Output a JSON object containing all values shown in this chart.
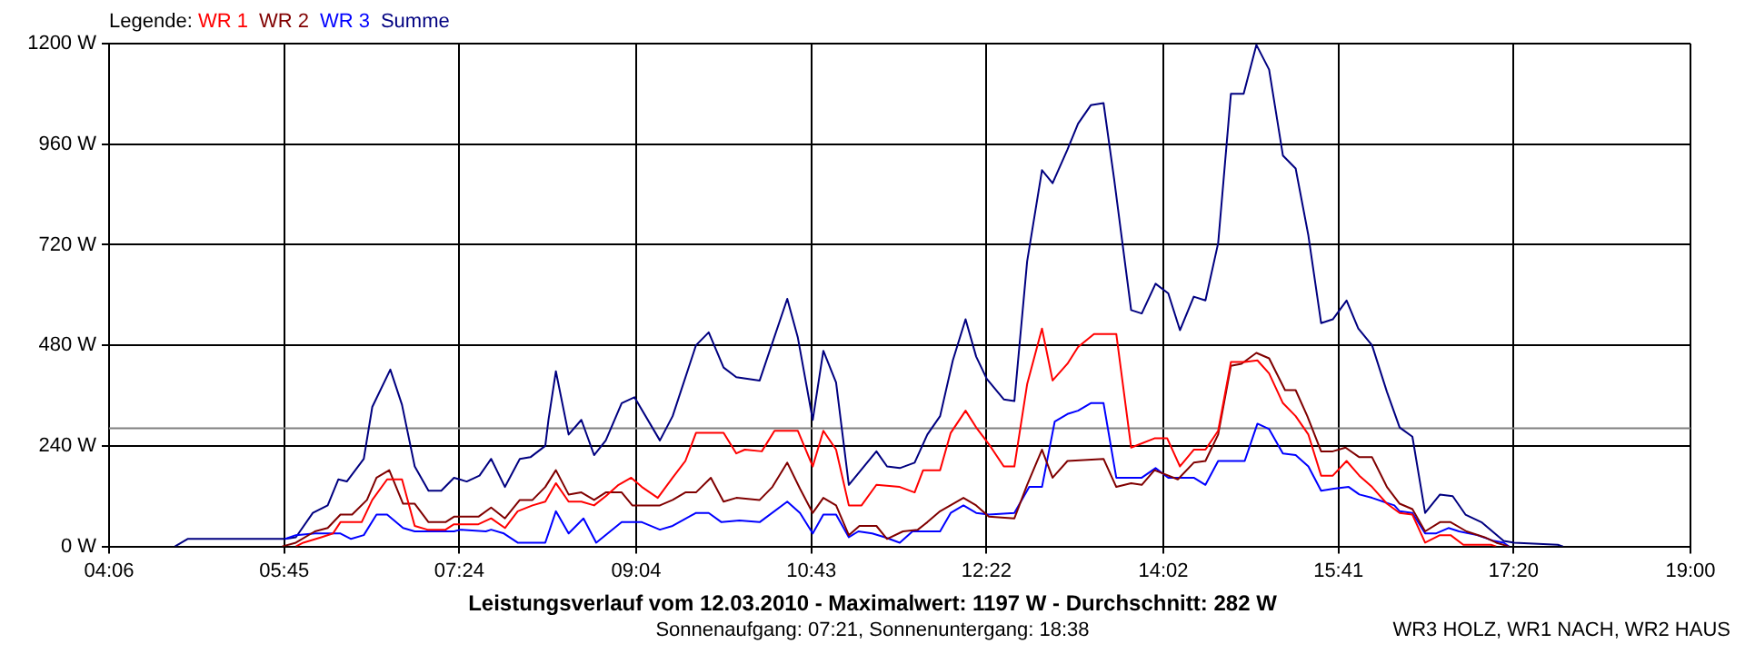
{
  "chart_data": {
    "type": "line",
    "title": "Leistungsverlauf vom 12.03.2010 - Maximalwert: 1197 W - Durchschnitt: 282 W",
    "subtitle": "Sonnenaufgang: 07:21, Sonnenuntergang: 18:38",
    "annotations": [
      "WR3 HOLZ, WR1 NACH, WR2 HAUS"
    ],
    "legend_title": "Legende:",
    "legend": "top left",
    "grid": true,
    "xlim": [
      4.1,
      19.0
    ],
    "xticks": [
      {
        "value": 4.1,
        "label": "04:06"
      },
      {
        "value": 5.75,
        "label": "05:45"
      },
      {
        "value": 7.4,
        "label": "07:24"
      },
      {
        "value": 9.0667,
        "label": "09:04"
      },
      {
        "value": 10.7167,
        "label": "10:43"
      },
      {
        "value": 12.3667,
        "label": "12:22"
      },
      {
        "value": 14.0333,
        "label": "14:02"
      },
      {
        "value": 15.6833,
        "label": "15:41"
      },
      {
        "value": 17.3333,
        "label": "17:20"
      },
      {
        "value": 19.0,
        "label": "19:00"
      }
    ],
    "ylim": [
      0,
      1200
    ],
    "yticks": [
      {
        "value": 0,
        "label": "0 W"
      },
      {
        "value": 240,
        "label": "240 W"
      },
      {
        "value": 480,
        "label": "480 W"
      },
      {
        "value": 720,
        "label": "720 W"
      },
      {
        "value": 960,
        "label": "960 W"
      },
      {
        "value": 1200,
        "label": "1200 W"
      }
    ],
    "ref_lines": [
      {
        "axis": "y",
        "value": 282,
        "color": "#808080"
      }
    ],
    "series": [
      {
        "name": "WR 1",
        "color": "#ff0000",
        "x": [
          5.86,
          5.93,
          6.1,
          6.21,
          6.28,
          6.48,
          6.58,
          6.72,
          6.86,
          6.98,
          7.1,
          7.27,
          7.35,
          7.58,
          7.7,
          7.83,
          7.95,
          8.09,
          8.21,
          8.31,
          8.43,
          8.55,
          8.67,
          8.78,
          8.9,
          9.02,
          9.12,
          9.27,
          9.41,
          9.53,
          9.63,
          9.89,
          10.01,
          10.09,
          10.25,
          10.37,
          10.59,
          10.73,
          10.83,
          10.95,
          11.07,
          11.19,
          11.33,
          11.55,
          11.69,
          11.77,
          11.93,
          12.03,
          12.17,
          12.27,
          12.39,
          12.53,
          12.63,
          12.75,
          12.89,
          12.99,
          13.13,
          13.23,
          13.38,
          13.59,
          13.73,
          13.95,
          14.07,
          14.19,
          14.32,
          14.43,
          14.55,
          14.67,
          14.8,
          14.92,
          15.03,
          15.16,
          15.28,
          15.4,
          15.52,
          15.63,
          15.76,
          15.88,
          16.0,
          16.14,
          16.26,
          16.38,
          16.5,
          16.64,
          16.74,
          16.86,
          17.12,
          17.17
        ],
        "values": [
          0,
          9,
          22,
          31,
          58,
          58,
          111,
          160,
          160,
          49,
          40,
          40,
          53,
          53,
          67,
          44,
          84,
          98,
          107,
          151,
          107,
          107,
          98,
          120,
          147,
          164,
          142,
          116,
          164,
          204,
          271,
          271,
          222,
          231,
          227,
          276,
          276,
          191,
          276,
          231,
          98,
          98,
          147,
          142,
          129,
          182,
          182,
          271,
          324,
          284,
          244,
          191,
          191,
          387,
          520,
          396,
          436,
          476,
          507,
          507,
          236,
          258,
          258,
          191,
          231,
          231,
          276,
          440,
          440,
          444,
          413,
          342,
          311,
          267,
          169,
          169,
          204,
          169,
          142,
          102,
          80,
          76,
          9,
          27,
          27,
          4,
          4,
          0
        ]
      },
      {
        "name": "WR 2",
        "color": "#800000",
        "x": [
          5.73,
          5.86,
          6.04,
          6.16,
          6.28,
          6.39,
          6.53,
          6.62,
          6.74,
          6.87,
          6.98,
          7.11,
          7.27,
          7.35,
          7.58,
          7.7,
          7.83,
          7.97,
          8.09,
          8.21,
          8.31,
          8.43,
          8.55,
          8.67,
          8.78,
          8.93,
          9.03,
          9.29,
          9.41,
          9.53,
          9.63,
          9.77,
          9.89,
          10.01,
          10.23,
          10.35,
          10.49,
          10.61,
          10.73,
          10.83,
          10.95,
          11.07,
          11.17,
          11.33,
          11.43,
          11.58,
          11.72,
          11.81,
          11.93,
          12.15,
          12.27,
          12.39,
          12.63,
          12.75,
          12.89,
          12.99,
          13.13,
          13.47,
          13.59,
          13.73,
          13.83,
          13.95,
          14.17,
          14.32,
          14.43,
          14.55,
          14.67,
          14.77,
          14.91,
          15.03,
          15.18,
          15.28,
          15.39,
          15.52,
          15.63,
          15.75,
          15.88,
          16.0,
          16.14,
          16.26,
          16.38,
          16.5,
          16.64,
          16.74,
          16.89,
          17.06,
          17.17,
          17.29
        ],
        "values": [
          0,
          9,
          36,
          44,
          76,
          76,
          111,
          164,
          182,
          102,
          102,
          58,
          58,
          71,
          71,
          93,
          67,
          111,
          111,
          142,
          182,
          124,
          129,
          111,
          129,
          129,
          98,
          98,
          111,
          129,
          129,
          164,
          107,
          116,
          111,
          142,
          200,
          138,
          80,
          116,
          98,
          27,
          49,
          49,
          18,
          36,
          40,
          58,
          84,
          116,
          98,
          71,
          67,
          147,
          231,
          164,
          204,
          209,
          142,
          151,
          147,
          182,
          160,
          200,
          204,
          267,
          431,
          436,
          462,
          449,
          373,
          373,
          311,
          227,
          227,
          236,
          213,
          213,
          142,
          102,
          89,
          36,
          58,
          58,
          36,
          22,
          9,
          0
        ]
      },
      {
        "name": "WR 3",
        "color": "#0000ff",
        "x": [
          5.76,
          5.86,
          6.04,
          6.28,
          6.38,
          6.5,
          6.62,
          6.72,
          6.87,
          6.98,
          7.35,
          7.41,
          7.65,
          7.7,
          7.82,
          7.95,
          8.21,
          8.31,
          8.43,
          8.57,
          8.69,
          8.93,
          9.12,
          9.29,
          9.41,
          9.63,
          9.75,
          9.87,
          10.04,
          10.23,
          10.49,
          10.61,
          10.73,
          10.83,
          10.95,
          11.07,
          11.16,
          11.29,
          11.41,
          11.55,
          11.67,
          11.93,
          12.03,
          12.15,
          12.27,
          12.39,
          12.63,
          12.77,
          12.89,
          13.01,
          13.13,
          13.23,
          13.35,
          13.47,
          13.59,
          13.83,
          13.96,
          14.08,
          14.32,
          14.43,
          14.55,
          14.8,
          14.92,
          15.03,
          15.16,
          15.28,
          15.4,
          15.52,
          15.64,
          15.78,
          15.88,
          16.0,
          16.21,
          16.26,
          16.38,
          16.5,
          16.6,
          16.72,
          16.82,
          16.99,
          17.15,
          17.24,
          17.29
        ],
        "values": [
          18,
          27,
          31,
          31,
          18,
          27,
          76,
          76,
          44,
          36,
          36,
          40,
          36,
          40,
          31,
          9,
          9,
          84,
          31,
          67,
          9,
          58,
          58,
          40,
          49,
          80,
          80,
          58,
          62,
          58,
          107,
          80,
          31,
          76,
          76,
          22,
          36,
          31,
          22,
          9,
          36,
          36,
          80,
          98,
          80,
          76,
          80,
          142,
          142,
          298,
          316,
          324,
          342,
          342,
          164,
          164,
          187,
          164,
          164,
          147,
          204,
          204,
          293,
          280,
          222,
          218,
          191,
          133,
          138,
          142,
          124,
          116,
          98,
          84,
          80,
          31,
          31,
          44,
          36,
          27,
          13,
          9,
          0
        ]
      },
      {
        "name": "Summe",
        "color": "#000080",
        "x": [
          4.72,
          4.84,
          5.76,
          5.86,
          6.02,
          6.16,
          6.26,
          6.34,
          6.5,
          6.58,
          6.75,
          6.86,
          6.98,
          7.11,
          7.23,
          7.35,
          7.47,
          7.59,
          7.7,
          7.83,
          7.97,
          8.07,
          8.21,
          8.24,
          8.31,
          8.43,
          8.55,
          8.67,
          8.78,
          8.93,
          9.05,
          9.29,
          9.41,
          9.63,
          9.75,
          9.89,
          10.01,
          10.23,
          10.49,
          10.59,
          10.73,
          10.83,
          10.95,
          11.07,
          11.33,
          11.43,
          11.55,
          11.69,
          11.81,
          11.93,
          12.05,
          12.17,
          12.27,
          12.37,
          12.53,
          12.63,
          12.75,
          12.89,
          12.99,
          13.13,
          13.23,
          13.35,
          13.47,
          13.57,
          13.73,
          13.83,
          13.96,
          14.08,
          14.19,
          14.32,
          14.43,
          14.55,
          14.67,
          14.79,
          14.91,
          15.03,
          15.16,
          15.28,
          15.4,
          15.52,
          15.63,
          15.76,
          15.87,
          16.0,
          16.14,
          16.26,
          16.38,
          16.5,
          16.64,
          16.76,
          16.88,
          17.03,
          17.24,
          17.34,
          17.75,
          17.8
        ],
        "values": [
          0,
          18,
          18,
          22,
          80,
          98,
          160,
          155,
          209,
          333,
          422,
          338,
          191,
          133,
          133,
          164,
          155,
          169,
          209,
          142,
          209,
          213,
          240,
          302,
          418,
          267,
          302,
          218,
          253,
          342,
          356,
          253,
          311,
          480,
          511,
          427,
          404,
          396,
          591,
          498,
          302,
          467,
          391,
          147,
          227,
          191,
          187,
          200,
          267,
          311,
          444,
          542,
          453,
          400,
          351,
          347,
          680,
          898,
          867,
          947,
          1009,
          1053,
          1058,
          876,
          564,
          556,
          627,
          604,
          516,
          596,
          587,
          724,
          1080,
          1080,
          1197,
          1138,
          933,
          902,
          742,
          533,
          542,
          587,
          520,
          480,
          369,
          284,
          262,
          80,
          124,
          120,
          76,
          58,
          13,
          9,
          4,
          0
        ]
      }
    ]
  }
}
